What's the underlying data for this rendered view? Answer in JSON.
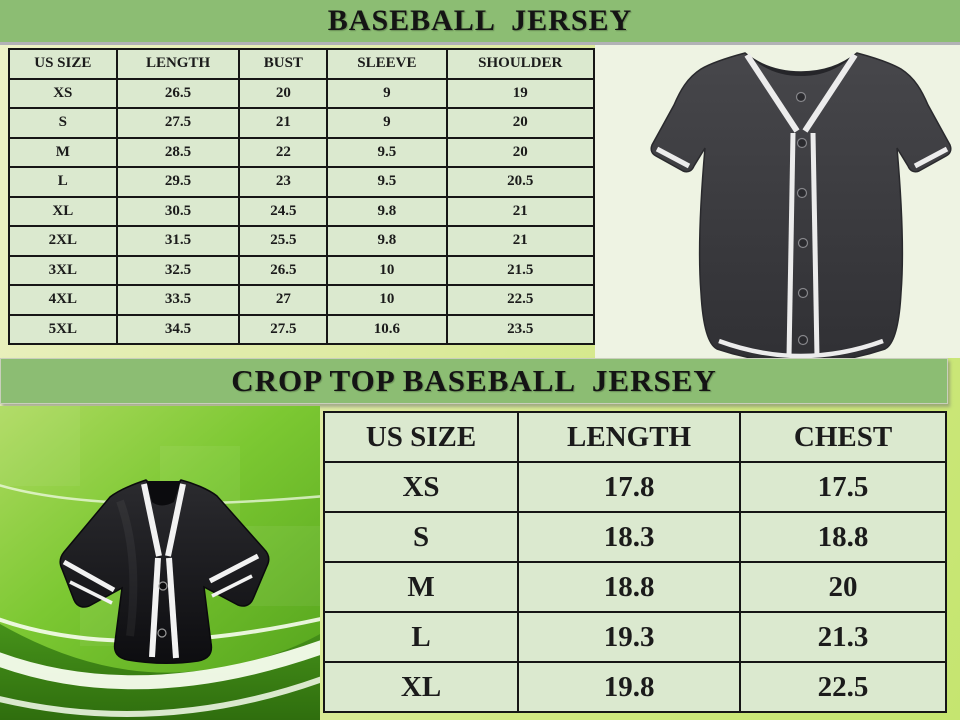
{
  "section1": {
    "title": "BASEBALL  JERSEY",
    "size_chart": {
      "headers": [
        "US SIZE",
        "LENGTH",
        "BUST",
        "SLEEVE",
        "SHOULDER"
      ],
      "rows": [
        [
          "XS",
          "26.5",
          "20",
          "9",
          "19"
        ],
        [
          "S",
          "27.5",
          "21",
          "9",
          "20"
        ],
        [
          "M",
          "28.5",
          "22",
          "9.5",
          "20"
        ],
        [
          "L",
          "29.5",
          "23",
          "9.5",
          "20.5"
        ],
        [
          "XL",
          "30.5",
          "24.5",
          "9.8",
          "21"
        ],
        [
          "2XL",
          "31.5",
          "25.5",
          "9.8",
          "21"
        ],
        [
          "3XL",
          "32.5",
          "26.5",
          "10",
          "21.5"
        ],
        [
          "4XL",
          "33.5",
          "27",
          "10",
          "22.5"
        ],
        [
          "5XL",
          "34.5",
          "27.5",
          "10.6",
          "23.5"
        ]
      ]
    },
    "image_name": "black-baseball-jersey-illustration"
  },
  "section2": {
    "title": "CROP TOP BASEBALL  JERSEY",
    "size_chart": {
      "headers": [
        "US SIZE",
        "LENGTH",
        "CHEST"
      ],
      "rows": [
        [
          "XS",
          "17.8",
          "17.5"
        ],
        [
          "S",
          "18.3",
          "18.8"
        ],
        [
          "M",
          "18.8",
          "20"
        ],
        [
          "L",
          "19.3",
          "21.3"
        ],
        [
          "XL",
          "19.8",
          "22.5"
        ]
      ]
    },
    "image_name": "black-crop-top-baseball-jersey-photo"
  },
  "colors": {
    "title_bar_green": "#8cbd73",
    "table_cell_green": "#dbe9cf",
    "table_border": "#161616",
    "panel_background": "#eef3e3",
    "page_gradient_start": "#edf2c8",
    "page_gradient_end": "#c5e570",
    "jersey_dark": "#38383c",
    "photo_green": "#76c62e",
    "text": "#1b1b1b"
  }
}
